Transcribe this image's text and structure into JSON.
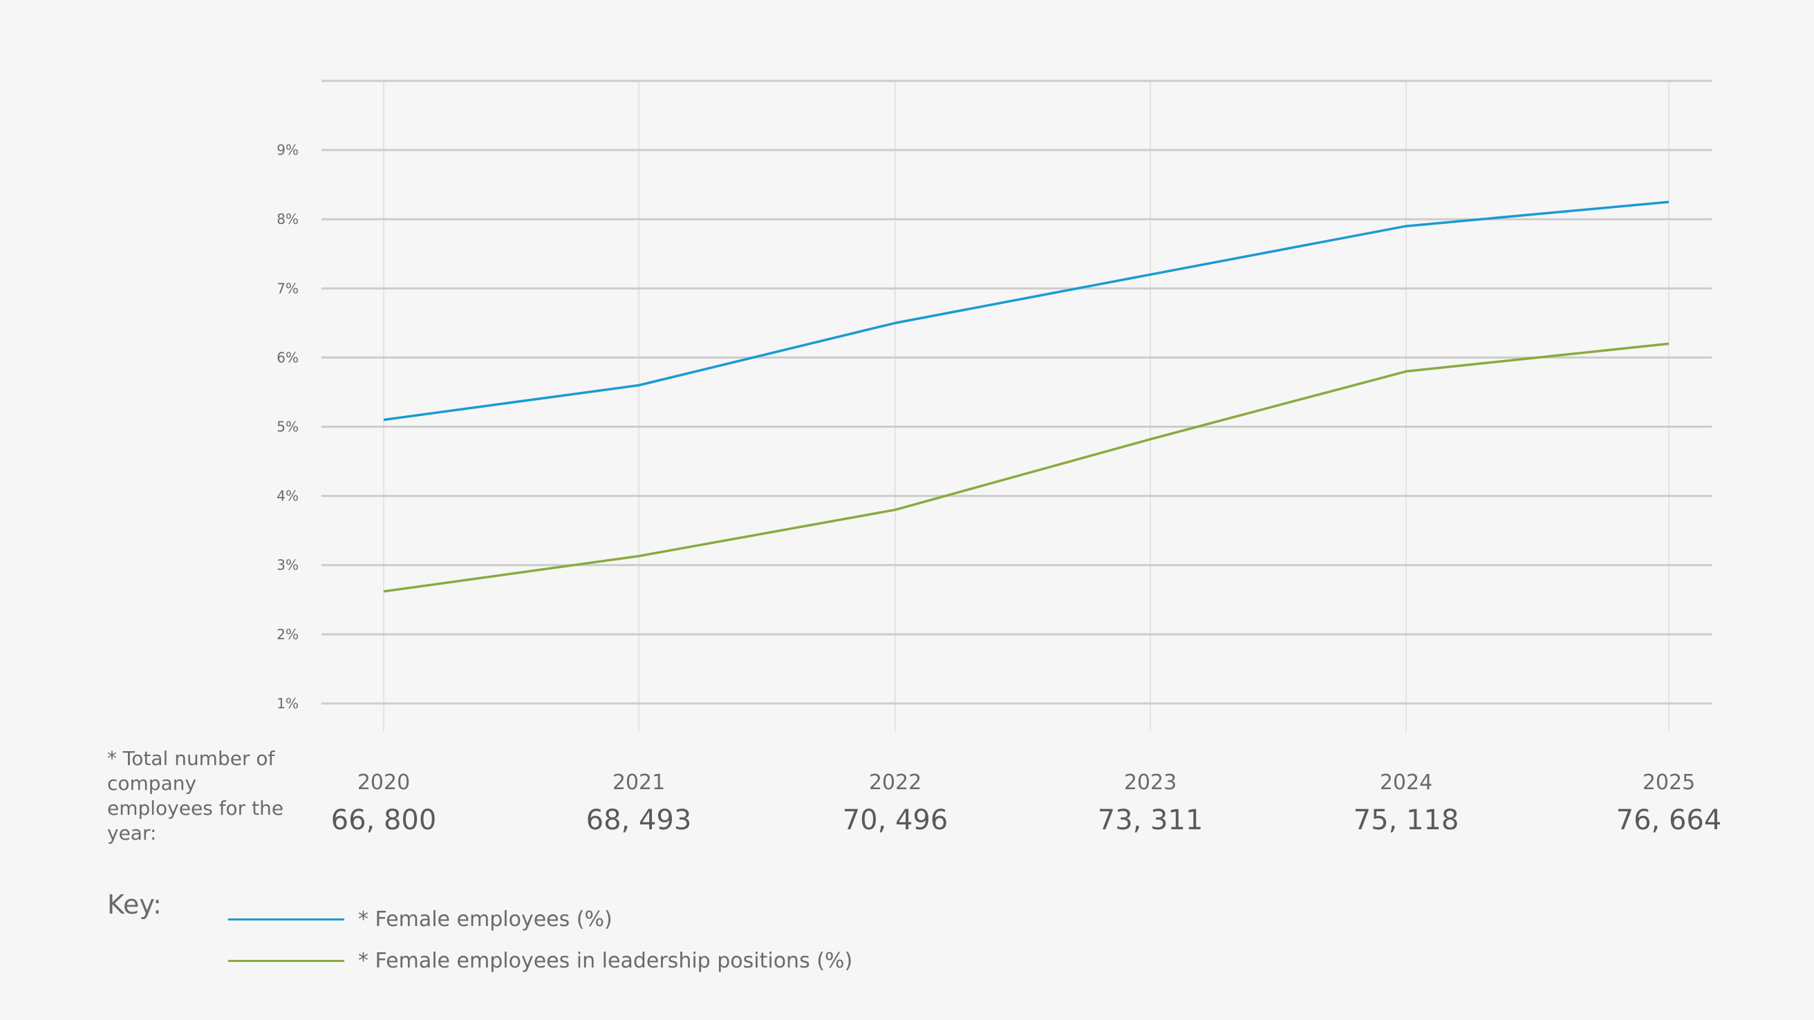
{
  "chart_data": {
    "type": "line",
    "x": [
      "2020",
      "2021",
      "2022",
      "2023",
      "2024",
      "2025"
    ],
    "x_sublabels": [
      "66, 800",
      "68, 493",
      "70, 496",
      "73, 311",
      "75, 118",
      "76, 664"
    ],
    "y_ticks": [
      "1%",
      "2%",
      "3%",
      "4%",
      "5%",
      "6%",
      "7%",
      "8%",
      "9%"
    ],
    "ylim": [
      0.6,
      10
    ],
    "grid": true,
    "series": [
      {
        "name": "* Female employees (%)",
        "color": "#1a9bd1",
        "values": [
          5.1,
          5.6,
          6.5,
          7.2,
          7.9,
          8.25
        ]
      },
      {
        "name": "* Female employees in leadership positions (%)",
        "color": "#8aaa3f",
        "values": [
          2.62,
          3.13,
          3.8,
          4.82,
          5.8,
          6.2
        ]
      }
    ]
  },
  "footnote": "* Total number of company employees for the year:",
  "key": {
    "title": "Key:"
  }
}
